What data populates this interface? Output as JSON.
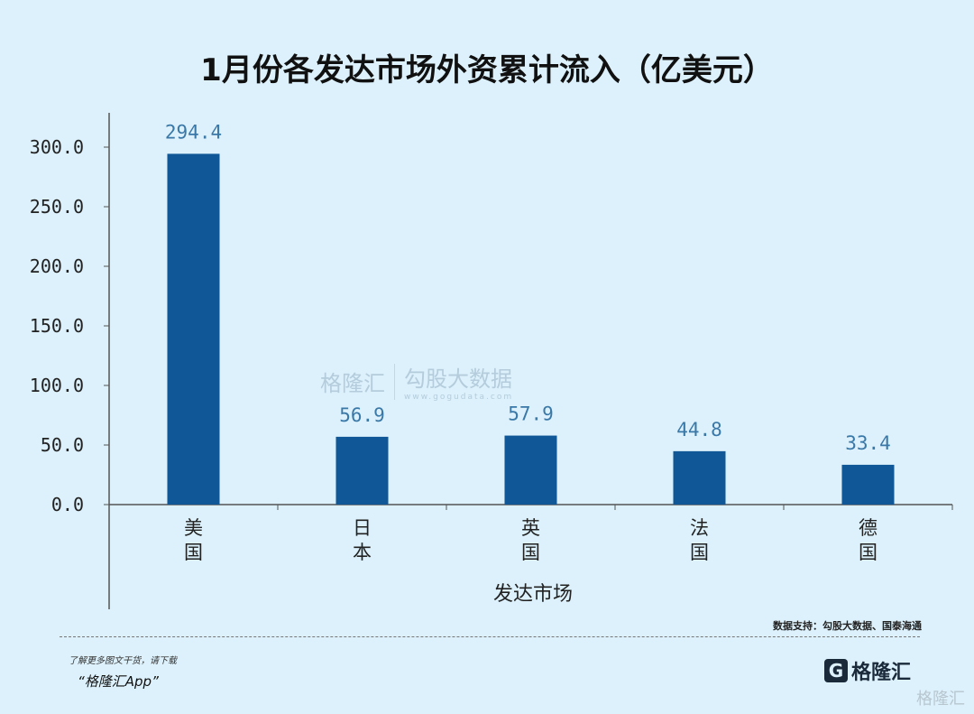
{
  "chart_data": {
    "type": "bar",
    "title": "1月份各发达市场外资累计流入（亿美元）",
    "categories": [
      "美国",
      "日本",
      "英国",
      "法国",
      "德国"
    ],
    "values": [
      294.4,
      56.9,
      57.9,
      44.8,
      33.4
    ],
    "xlabel": "发达市场",
    "ylabel": "",
    "ylim": [
      0,
      300
    ],
    "yticks": [
      "0.0",
      "50.0",
      "100.0",
      "150.0",
      "200.0",
      "250.0",
      "300.0"
    ],
    "grid": false,
    "bar_color": "#0f5797",
    "label_color": "#3a78a8"
  },
  "footer": {
    "source": "数据支持：勾股大数据、国泰海通",
    "promo_line": "了解更多图文干货，请下载",
    "promo_app": "“格隆汇App”",
    "logo_text": "格隆汇",
    "corner_watermark": "格隆汇"
  },
  "watermark": {
    "brand1": "格隆汇",
    "brand2": "勾股大数据",
    "url2": "www.gogudata.com"
  }
}
